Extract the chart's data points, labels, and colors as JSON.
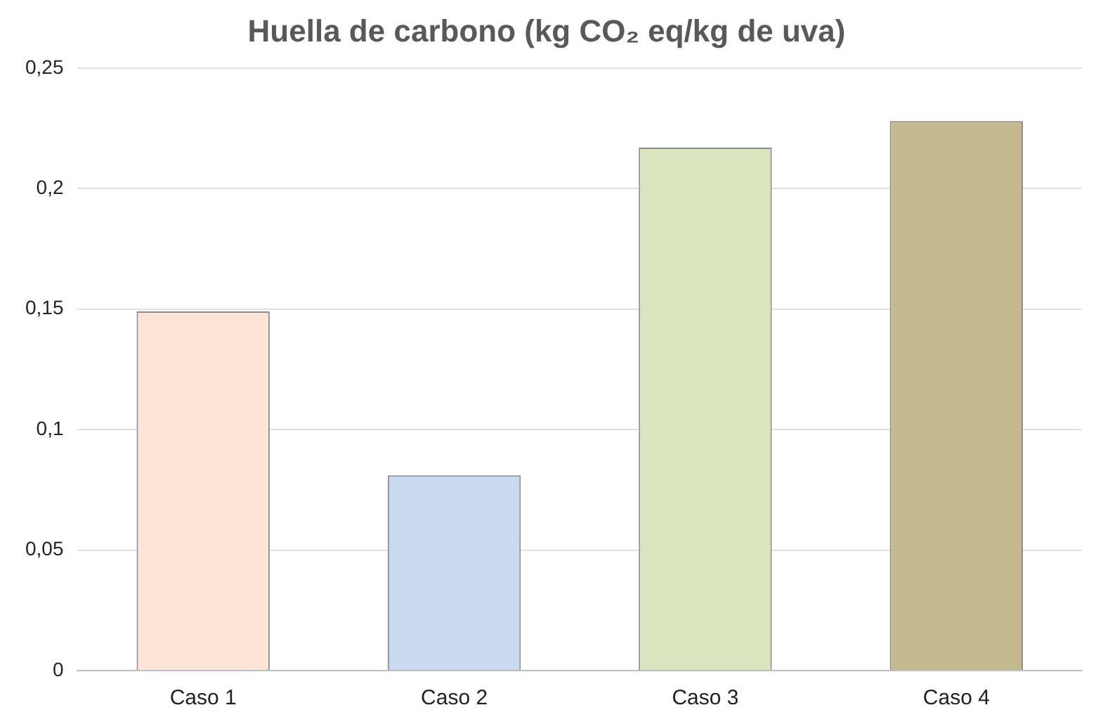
{
  "chart_data": {
    "type": "bar",
    "title": "Huella de carbono (kg CO₂ eq/kg de uva)",
    "categories": [
      "Caso 1",
      "Caso 2",
      "Caso 3",
      "Caso 4"
    ],
    "values": [
      0.149,
      0.081,
      0.217,
      0.228
    ],
    "colors": [
      "#fce4d6",
      "#c9d9f0",
      "#d9e6bd",
      "#c4ba8f"
    ],
    "ylim": [
      0,
      0.25
    ],
    "yticks": [
      {
        "value": 0,
        "label": "0"
      },
      {
        "value": 0.05,
        "label": "0,05"
      },
      {
        "value": 0.1,
        "label": "0,1"
      },
      {
        "value": 0.15,
        "label": "0,15"
      },
      {
        "value": 0.2,
        "label": "0,2"
      },
      {
        "value": 0.25,
        "label": "0,25"
      }
    ],
    "grid": "y",
    "legend": false
  }
}
